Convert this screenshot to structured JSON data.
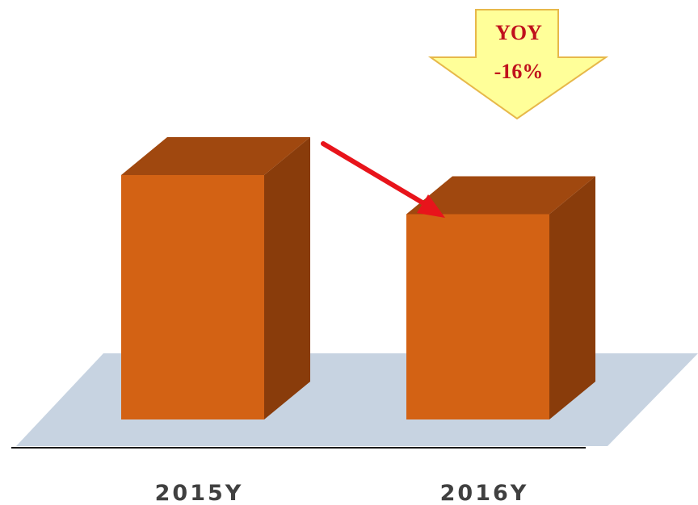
{
  "chart_data": {
    "type": "bar",
    "style": "3d-column",
    "categories": [
      "2015Y",
      "2016Y"
    ],
    "values": [
      100,
      84
    ],
    "ylim": [
      0,
      100
    ],
    "grid": false,
    "legend": "none",
    "annotation": {
      "line1": "YOY",
      "line2": "-16%",
      "shape": "down-arrow",
      "trend_arrow": "decrease"
    }
  },
  "colors": {
    "bar_front": "#D36214",
    "bar_top": "#A0480F",
    "bar_side": "#893C0B",
    "floor": "#C7D3E1",
    "axis_line": "#1a1a1a",
    "trend_arrow": "#E8141B",
    "callout_fill": "#FFFF99",
    "callout_stroke": "#E7B84A",
    "callout_text": "#C0101C",
    "label_text": "#404040"
  }
}
